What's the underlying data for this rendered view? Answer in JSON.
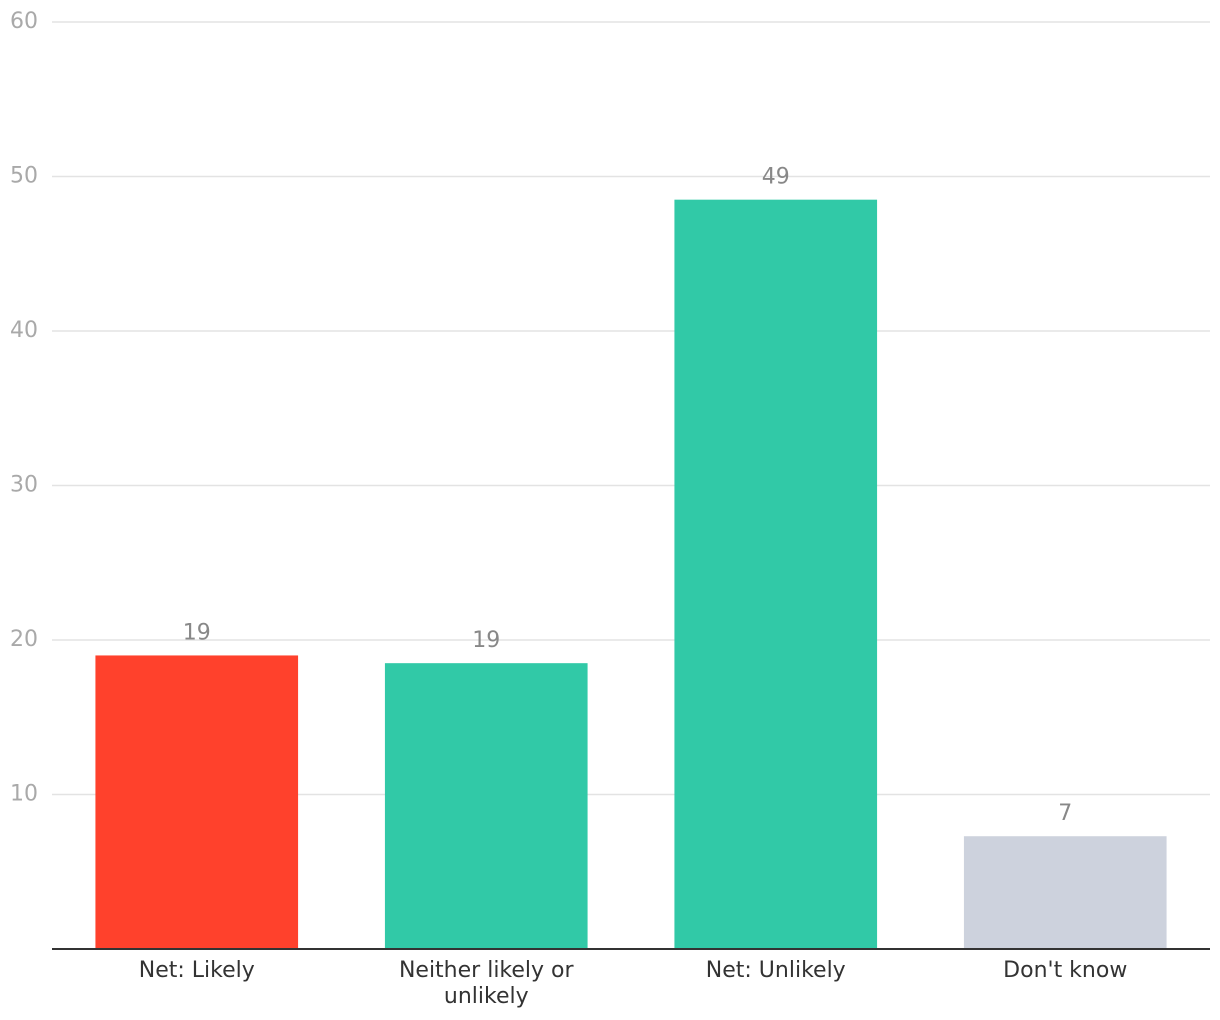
{
  "chart_data": {
    "type": "bar",
    "categories": [
      "Net: Likely",
      "Neither likely or unlikely",
      "Net: Unlikely",
      "Don't know"
    ],
    "values": [
      19,
      18.5,
      48.5,
      7.3
    ],
    "value_labels": [
      "19",
      "19",
      "49",
      "7"
    ],
    "colors": [
      "#ff412c",
      "#31c9a7",
      "#31c9a7",
      "#cdd2dd"
    ],
    "ylim": [
      0,
      60
    ],
    "yticks": [
      10,
      20,
      30,
      40,
      50,
      60
    ],
    "grid": true
  }
}
